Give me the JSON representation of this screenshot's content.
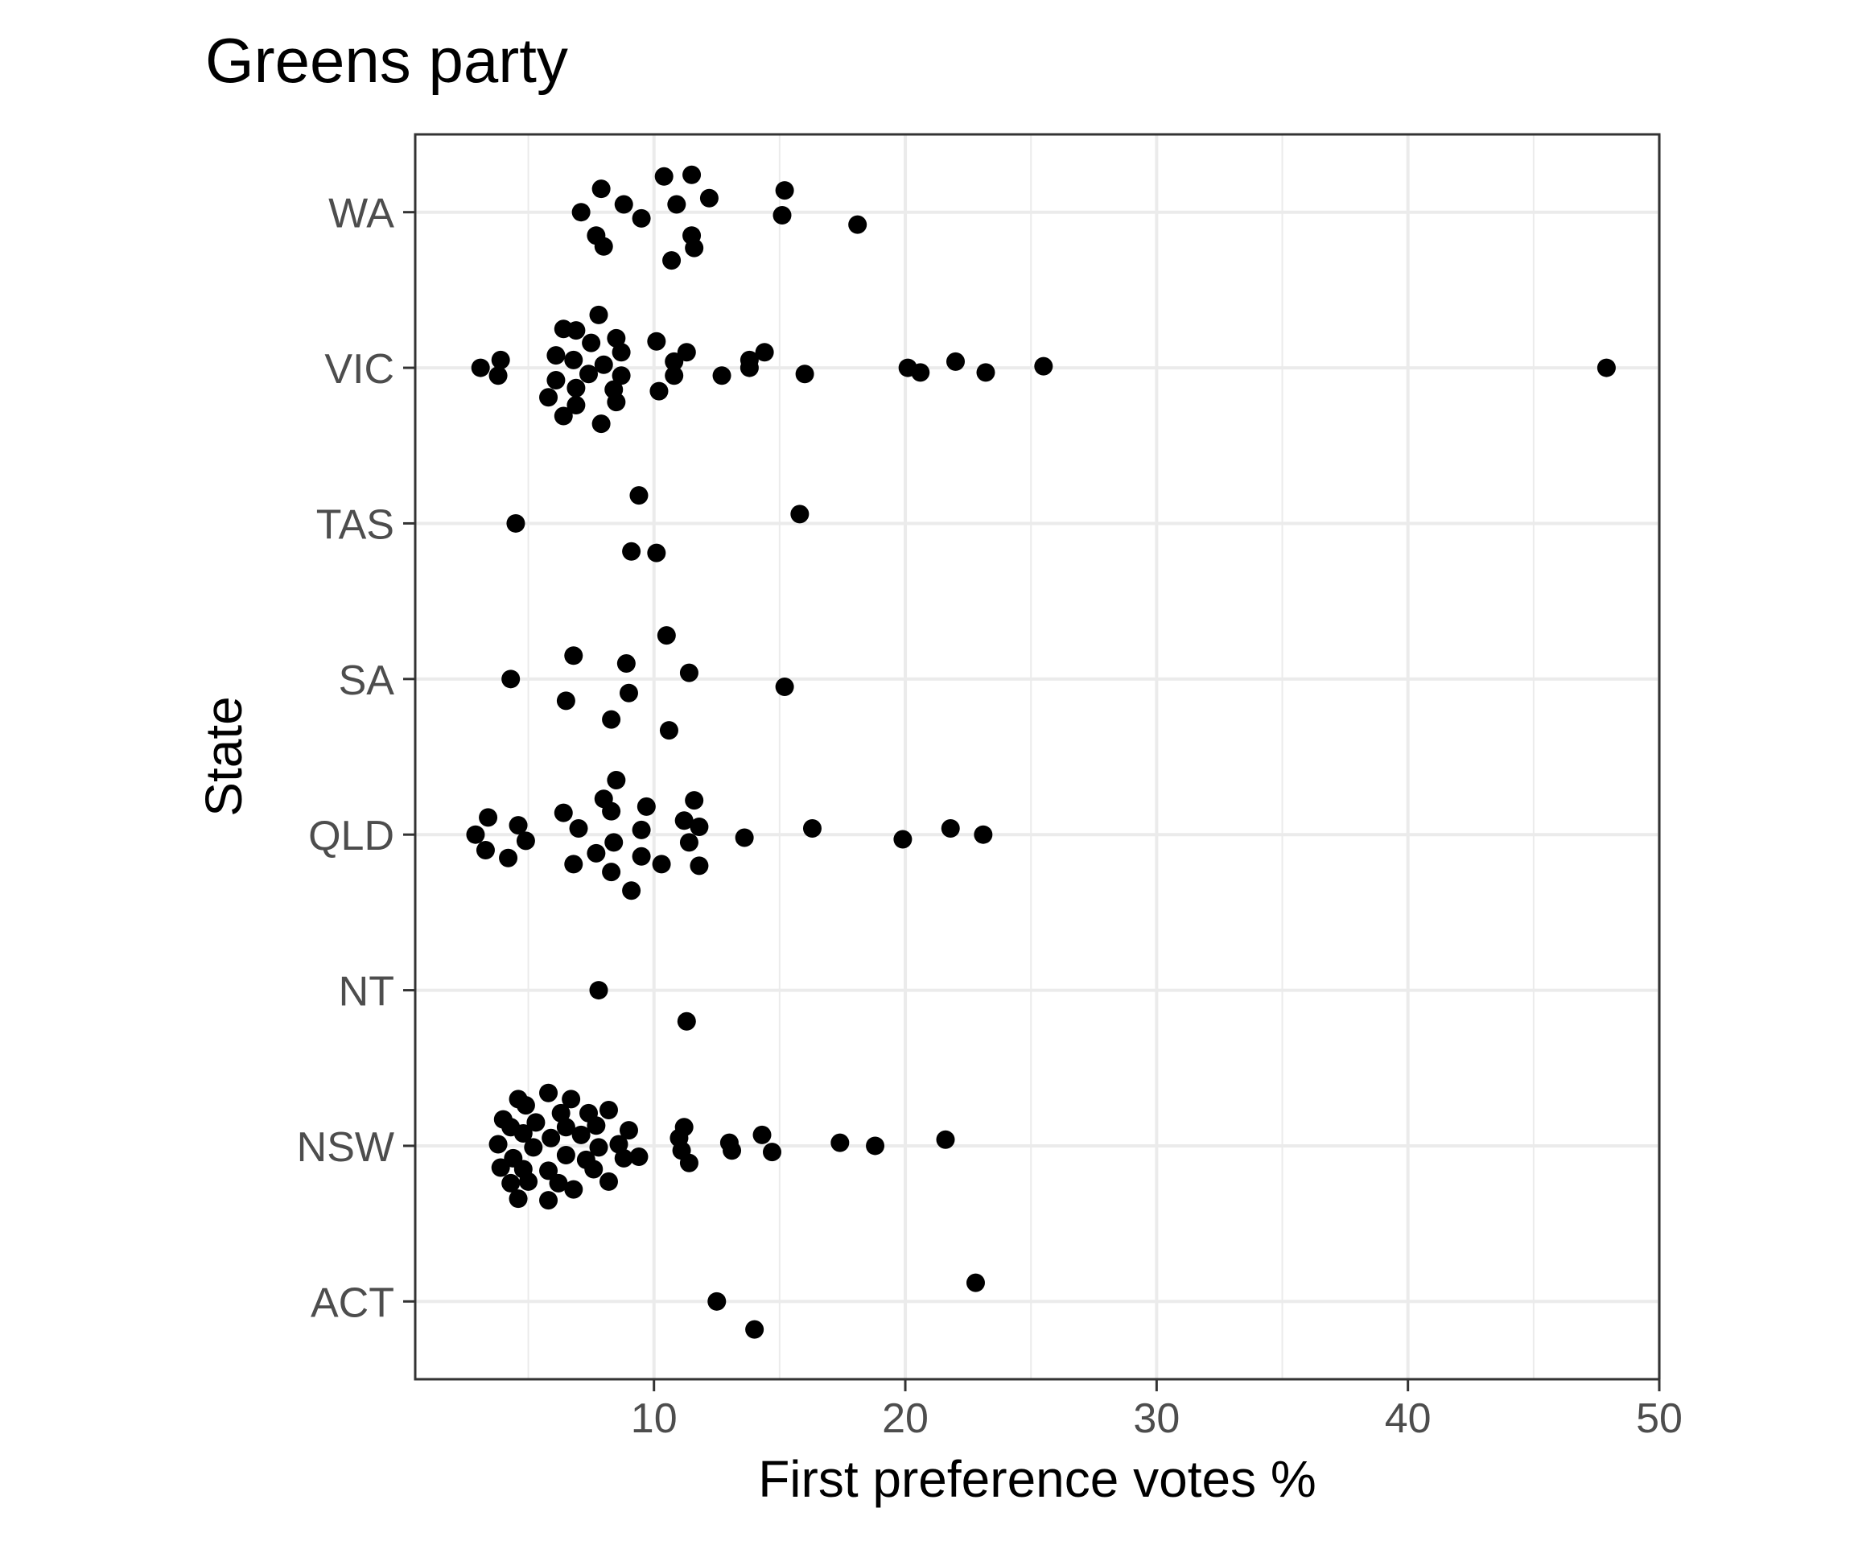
{
  "chart_data": {
    "type": "scatter",
    "title": "Greens party",
    "xlabel": "First preference votes %",
    "ylabel": "State",
    "xlim": [
      0.5,
      50
    ],
    "x_ticks": [
      10,
      20,
      30,
      40,
      50
    ],
    "x_minor_ticks": [
      5,
      15,
      25,
      35,
      45
    ],
    "categories": [
      "ACT",
      "NSW",
      "NT",
      "QLD",
      "SA",
      "TAS",
      "VIC",
      "WA"
    ],
    "grid": true,
    "legend": "none",
    "point_color": "#000000",
    "grid_color": "#ebebeb",
    "series": [
      {
        "category": "WA",
        "points": [
          {
            "x": 7.9,
            "jitter": 0.15
          },
          {
            "x": 10.4,
            "jitter": 0.23
          },
          {
            "x": 11.5,
            "jitter": 0.24
          },
          {
            "x": 15.2,
            "jitter": 0.14
          },
          {
            "x": 8.8,
            "jitter": 0.05
          },
          {
            "x": 10.9,
            "jitter": 0.05
          },
          {
            "x": 12.2,
            "jitter": 0.09
          },
          {
            "x": 7.1,
            "jitter": 0.0
          },
          {
            "x": 9.5,
            "jitter": -0.04
          },
          {
            "x": 15.1,
            "jitter": -0.02
          },
          {
            "x": 18.1,
            "jitter": -0.08
          },
          {
            "x": 7.7,
            "jitter": -0.15
          },
          {
            "x": 11.5,
            "jitter": -0.15
          },
          {
            "x": 8.0,
            "jitter": -0.22
          },
          {
            "x": 11.6,
            "jitter": -0.23
          },
          {
            "x": 10.7,
            "jitter": -0.31
          }
        ]
      },
      {
        "category": "VIC",
        "points": [
          {
            "x": 7.8,
            "jitter": 0.34
          },
          {
            "x": 6.4,
            "jitter": 0.25
          },
          {
            "x": 6.9,
            "jitter": 0.24
          },
          {
            "x": 8.5,
            "jitter": 0.19
          },
          {
            "x": 10.1,
            "jitter": 0.17
          },
          {
            "x": 7.5,
            "jitter": 0.16
          },
          {
            "x": 8.7,
            "jitter": 0.1
          },
          {
            "x": 11.3,
            "jitter": 0.1
          },
          {
            "x": 14.4,
            "jitter": 0.1
          },
          {
            "x": 6.1,
            "jitter": 0.08
          },
          {
            "x": 6.8,
            "jitter": 0.05
          },
          {
            "x": 8.0,
            "jitter": 0.02
          },
          {
            "x": 10.8,
            "jitter": 0.04
          },
          {
            "x": 13.8,
            "jitter": 0.05
          },
          {
            "x": 3.9,
            "jitter": 0.05
          },
          {
            "x": 3.1,
            "jitter": 0.0
          },
          {
            "x": 13.8,
            "jitter": 0.0
          },
          {
            "x": 20.1,
            "jitter": 0.0
          },
          {
            "x": 22.0,
            "jitter": 0.04
          },
          {
            "x": 25.5,
            "jitter": 0.01
          },
          {
            "x": 47.9,
            "jitter": 0.0
          },
          {
            "x": 7.4,
            "jitter": -0.04
          },
          {
            "x": 8.7,
            "jitter": -0.05
          },
          {
            "x": 10.8,
            "jitter": -0.05
          },
          {
            "x": 12.7,
            "jitter": -0.05
          },
          {
            "x": 16.0,
            "jitter": -0.04
          },
          {
            "x": 20.6,
            "jitter": -0.03
          },
          {
            "x": 23.2,
            "jitter": -0.03
          },
          {
            "x": 3.8,
            "jitter": -0.05
          },
          {
            "x": 6.1,
            "jitter": -0.08
          },
          {
            "x": 6.9,
            "jitter": -0.13
          },
          {
            "x": 8.4,
            "jitter": -0.14
          },
          {
            "x": 10.2,
            "jitter": -0.15
          },
          {
            "x": 5.8,
            "jitter": -0.19
          },
          {
            "x": 6.9,
            "jitter": -0.24
          },
          {
            "x": 8.5,
            "jitter": -0.22
          },
          {
            "x": 6.4,
            "jitter": -0.31
          },
          {
            "x": 7.9,
            "jitter": -0.36
          }
        ]
      },
      {
        "category": "TAS",
        "points": [
          {
            "x": 9.4,
            "jitter": 0.18
          },
          {
            "x": 15.8,
            "jitter": 0.06
          },
          {
            "x": 4.5,
            "jitter": 0.0
          },
          {
            "x": 9.1,
            "jitter": -0.18
          },
          {
            "x": 10.1,
            "jitter": -0.19
          }
        ]
      },
      {
        "category": "SA",
        "points": [
          {
            "x": 10.5,
            "jitter": 0.28
          },
          {
            "x": 6.8,
            "jitter": 0.15
          },
          {
            "x": 8.9,
            "jitter": 0.1
          },
          {
            "x": 11.4,
            "jitter": 0.04
          },
          {
            "x": 4.3,
            "jitter": 0.0
          },
          {
            "x": 15.2,
            "jitter": -0.05
          },
          {
            "x": 9.0,
            "jitter": -0.09
          },
          {
            "x": 6.5,
            "jitter": -0.14
          },
          {
            "x": 8.3,
            "jitter": -0.26
          },
          {
            "x": 10.6,
            "jitter": -0.33
          }
        ]
      },
      {
        "category": "QLD",
        "points": [
          {
            "x": 8.5,
            "jitter": 0.35
          },
          {
            "x": 8.0,
            "jitter": 0.23
          },
          {
            "x": 11.6,
            "jitter": 0.22
          },
          {
            "x": 9.7,
            "jitter": 0.18
          },
          {
            "x": 6.4,
            "jitter": 0.14
          },
          {
            "x": 8.3,
            "jitter": 0.15
          },
          {
            "x": 3.4,
            "jitter": 0.11
          },
          {
            "x": 11.2,
            "jitter": 0.09
          },
          {
            "x": 11.8,
            "jitter": 0.05
          },
          {
            "x": 4.6,
            "jitter": 0.06
          },
          {
            "x": 7.0,
            "jitter": 0.04
          },
          {
            "x": 9.5,
            "jitter": 0.03
          },
          {
            "x": 16.3,
            "jitter": 0.04
          },
          {
            "x": 21.8,
            "jitter": 0.04
          },
          {
            "x": 2.9,
            "jitter": 0.0
          },
          {
            "x": 13.6,
            "jitter": -0.02
          },
          {
            "x": 19.9,
            "jitter": -0.03
          },
          {
            "x": 23.1,
            "jitter": 0.0
          },
          {
            "x": 4.9,
            "jitter": -0.04
          },
          {
            "x": 8.4,
            "jitter": -0.05
          },
          {
            "x": 11.4,
            "jitter": -0.05
          },
          {
            "x": 3.3,
            "jitter": -0.1
          },
          {
            "x": 7.7,
            "jitter": -0.12
          },
          {
            "x": 9.5,
            "jitter": -0.14
          },
          {
            "x": 4.2,
            "jitter": -0.15
          },
          {
            "x": 6.8,
            "jitter": -0.19
          },
          {
            "x": 10.3,
            "jitter": -0.19
          },
          {
            "x": 11.8,
            "jitter": -0.2
          },
          {
            "x": 8.3,
            "jitter": -0.24
          },
          {
            "x": 9.1,
            "jitter": -0.36
          }
        ]
      },
      {
        "category": "NT",
        "points": [
          {
            "x": 7.8,
            "jitter": 0.0
          },
          {
            "x": 11.3,
            "jitter": -0.2
          }
        ]
      },
      {
        "category": "NSW",
        "points": [
          {
            "x": 5.8,
            "jitter": 0.34
          },
          {
            "x": 4.6,
            "jitter": 0.3
          },
          {
            "x": 6.7,
            "jitter": 0.3
          },
          {
            "x": 4.9,
            "jitter": 0.26
          },
          {
            "x": 8.2,
            "jitter": 0.23
          },
          {
            "x": 6.3,
            "jitter": 0.21
          },
          {
            "x": 7.4,
            "jitter": 0.21
          },
          {
            "x": 4.0,
            "jitter": 0.17
          },
          {
            "x": 5.3,
            "jitter": 0.15
          },
          {
            "x": 6.5,
            "jitter": 0.12
          },
          {
            "x": 7.7,
            "jitter": 0.13
          },
          {
            "x": 4.3,
            "jitter": 0.12
          },
          {
            "x": 11.2,
            "jitter": 0.12
          },
          {
            "x": 9.0,
            "jitter": 0.1
          },
          {
            "x": 14.3,
            "jitter": 0.07
          },
          {
            "x": 4.8,
            "jitter": 0.08
          },
          {
            "x": 7.1,
            "jitter": 0.07
          },
          {
            "x": 5.9,
            "jitter": 0.05
          },
          {
            "x": 11.0,
            "jitter": 0.05
          },
          {
            "x": 21.6,
            "jitter": 0.04
          },
          {
            "x": 3.8,
            "jitter": 0.01
          },
          {
            "x": 8.6,
            "jitter": 0.01
          },
          {
            "x": 13.0,
            "jitter": 0.02
          },
          {
            "x": 17.4,
            "jitter": 0.02
          },
          {
            "x": 5.2,
            "jitter": -0.01
          },
          {
            "x": 7.8,
            "jitter": -0.01
          },
          {
            "x": 18.8,
            "jitter": 0.0
          },
          {
            "x": 11.1,
            "jitter": -0.03
          },
          {
            "x": 13.1,
            "jitter": -0.03
          },
          {
            "x": 4.4,
            "jitter": -0.08
          },
          {
            "x": 6.5,
            "jitter": -0.06
          },
          {
            "x": 7.3,
            "jitter": -0.09
          },
          {
            "x": 8.8,
            "jitter": -0.08
          },
          {
            "x": 9.4,
            "jitter": -0.07
          },
          {
            "x": 14.7,
            "jitter": -0.04
          },
          {
            "x": 11.4,
            "jitter": -0.11
          },
          {
            "x": 3.9,
            "jitter": -0.14
          },
          {
            "x": 4.8,
            "jitter": -0.15
          },
          {
            "x": 5.8,
            "jitter": -0.16
          },
          {
            "x": 7.6,
            "jitter": -0.15
          },
          {
            "x": 4.3,
            "jitter": -0.24
          },
          {
            "x": 5.0,
            "jitter": -0.23
          },
          {
            "x": 6.2,
            "jitter": -0.24
          },
          {
            "x": 8.2,
            "jitter": -0.23
          },
          {
            "x": 6.8,
            "jitter": -0.28
          },
          {
            "x": 4.6,
            "jitter": -0.34
          },
          {
            "x": 5.8,
            "jitter": -0.35
          }
        ]
      },
      {
        "category": "ACT",
        "points": [
          {
            "x": 22.8,
            "jitter": 0.12
          },
          {
            "x": 12.5,
            "jitter": 0.0
          },
          {
            "x": 14.0,
            "jitter": -0.18
          }
        ]
      }
    ]
  }
}
